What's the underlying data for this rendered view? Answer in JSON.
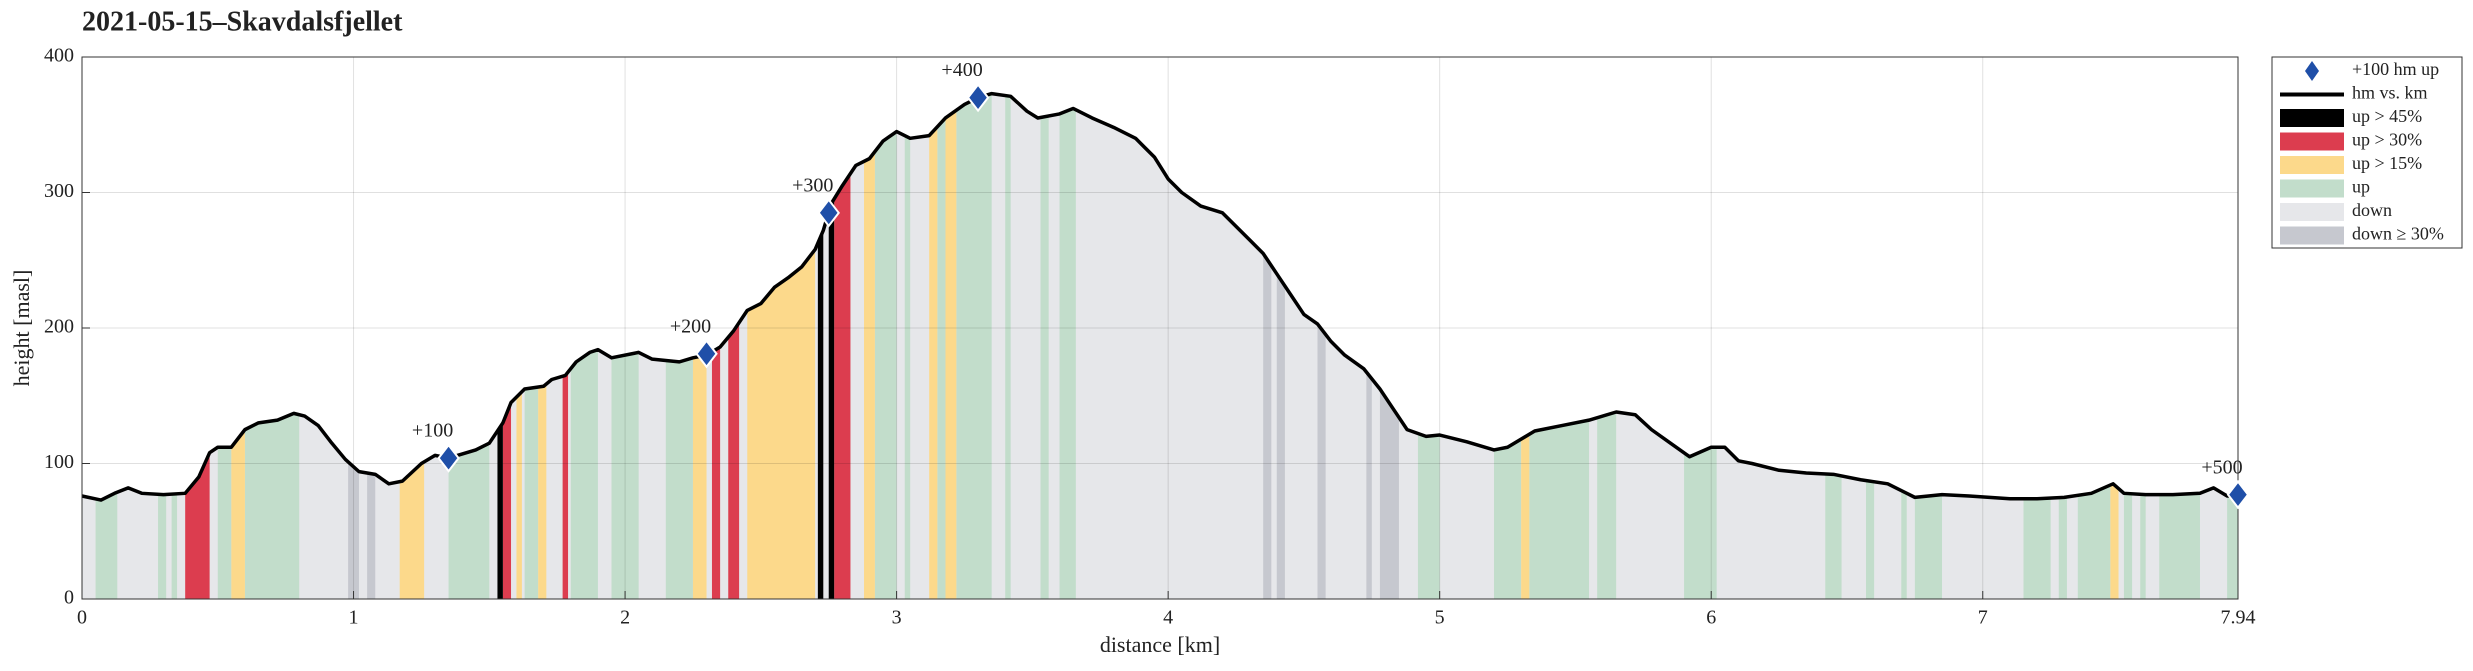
{
  "chart_data": {
    "type": "elevation-profile",
    "title": "2021-05-15–Skavdalsfjellet",
    "xlabel": "distance [km]",
    "ylabel": "height [masl]",
    "xlim": [
      0,
      7.94
    ],
    "ylim": [
      0,
      400
    ],
    "xticks": [
      0,
      1,
      2,
      3,
      4,
      5,
      6,
      7,
      7.94
    ],
    "yticks": [
      0,
      100,
      200,
      300,
      400
    ],
    "grid": true,
    "legend": "outside-right",
    "markers": {
      "name": "+100 hm up",
      "color": "#1f4fa8",
      "x": [
        1.35,
        2.3,
        2.75,
        3.3,
        7.94
      ],
      "y": [
        104,
        181,
        285,
        370,
        77
      ],
      "labels": [
        "+100",
        "+200",
        "+300",
        "+400",
        "+500"
      ]
    },
    "profile": {
      "name": "hm vs. km",
      "color": "#000000",
      "x": [
        0,
        0.07,
        0.12,
        0.17,
        0.22,
        0.3,
        0.38,
        0.43,
        0.47,
        0.5,
        0.55,
        0.6,
        0.65,
        0.72,
        0.78,
        0.82,
        0.87,
        0.92,
        0.97,
        1.02,
        1.08,
        1.13,
        1.18,
        1.25,
        1.3,
        1.35,
        1.45,
        1.5,
        1.55,
        1.58,
        1.63,
        1.7,
        1.73,
        1.78,
        1.82,
        1.87,
        1.9,
        1.95,
        2.05,
        2.1,
        2.2,
        2.25,
        2.3,
        2.35,
        2.4,
        2.45,
        2.5,
        2.55,
        2.6,
        2.65,
        2.7,
        2.73,
        2.76,
        2.8,
        2.85,
        2.9,
        2.95,
        3.0,
        3.05,
        3.12,
        3.18,
        3.25,
        3.3,
        3.35,
        3.42,
        3.48,
        3.52,
        3.6,
        3.65,
        3.72,
        3.8,
        3.88,
        3.95,
        4.0,
        4.05,
        4.12,
        4.2,
        4.3,
        4.35,
        4.4,
        4.45,
        4.5,
        4.55,
        4.6,
        4.65,
        4.72,
        4.78,
        4.83,
        4.88,
        4.95,
        5.0,
        5.1,
        5.2,
        5.25,
        5.35,
        5.45,
        5.55,
        5.65,
        5.72,
        5.78,
        5.85,
        5.92,
        6.0,
        6.05,
        6.1,
        6.15,
        6.25,
        6.35,
        6.45,
        6.55,
        6.65,
        6.75,
        6.85,
        6.95,
        7.1,
        7.2,
        7.3,
        7.4,
        7.48,
        7.52,
        7.6,
        7.7,
        7.8,
        7.85,
        7.9,
        7.94
      ],
      "y": [
        76,
        73,
        78,
        82,
        78,
        77,
        78,
        90,
        108,
        112,
        112,
        125,
        130,
        132,
        137,
        135,
        128,
        115,
        103,
        94,
        92,
        85,
        87,
        100,
        106,
        104,
        110,
        115,
        130,
        145,
        155,
        157,
        162,
        165,
        175,
        182,
        184,
        178,
        182,
        177,
        175,
        178,
        180,
        186,
        198,
        213,
        218,
        230,
        237,
        245,
        258,
        272,
        292,
        305,
        320,
        325,
        338,
        345,
        340,
        342,
        355,
        365,
        370,
        373,
        371,
        360,
        355,
        358,
        362,
        355,
        348,
        340,
        326,
        310,
        300,
        290,
        285,
        265,
        255,
        240,
        225,
        210,
        203,
        190,
        180,
        170,
        155,
        140,
        125,
        120,
        121,
        116,
        110,
        112,
        124,
        128,
        132,
        138,
        136,
        125,
        115,
        105,
        112,
        112,
        102,
        100,
        95,
        93,
        92,
        88,
        85,
        75,
        77,
        76,
        74,
        74,
        75,
        78,
        85,
        78,
        77,
        77,
        78,
        82,
        76,
        76
      ]
    },
    "bands": [
      {
        "name": "up > 45%",
        "color": "#000000",
        "ranges": [
          [
            1.53,
            1.55
          ],
          [
            2.71,
            2.73
          ],
          [
            2.75,
            2.77
          ]
        ]
      },
      {
        "name": "up > 30%",
        "color": "#dc3d4f",
        "ranges": [
          [
            0.38,
            0.47
          ],
          [
            1.55,
            1.58
          ],
          [
            1.77,
            1.79
          ],
          [
            2.32,
            2.35
          ],
          [
            2.38,
            2.42
          ],
          [
            2.77,
            2.83
          ]
        ]
      },
      {
        "name": "up > 15%",
        "color": "#fcd98b",
        "ranges": [
          [
            0.55,
            0.6
          ],
          [
            1.17,
            1.26
          ],
          [
            1.6,
            1.62
          ],
          [
            1.68,
            1.71
          ],
          [
            2.25,
            2.3
          ],
          [
            2.45,
            2.7
          ],
          [
            2.88,
            2.92
          ],
          [
            3.12,
            3.15
          ],
          [
            3.18,
            3.22
          ],
          [
            5.3,
            5.33
          ],
          [
            7.47,
            7.5
          ]
        ]
      },
      {
        "name": "up",
        "color": "#c2ddcb",
        "ranges": [
          [
            0.05,
            0.13
          ],
          [
            0.28,
            0.31
          ],
          [
            0.33,
            0.35
          ],
          [
            0.5,
            0.55
          ],
          [
            0.6,
            0.8
          ],
          [
            1.35,
            1.5
          ],
          [
            1.63,
            1.68
          ],
          [
            1.8,
            1.9
          ],
          [
            1.95,
            2.05
          ],
          [
            2.15,
            2.25
          ],
          [
            2.55,
            2.6
          ],
          [
            2.92,
            3.0
          ],
          [
            3.03,
            3.05
          ],
          [
            3.15,
            3.18
          ],
          [
            3.22,
            3.35
          ],
          [
            3.4,
            3.42
          ],
          [
            3.53,
            3.56
          ],
          [
            3.6,
            3.66
          ],
          [
            4.92,
            5.0
          ],
          [
            5.2,
            5.3
          ],
          [
            5.33,
            5.55
          ],
          [
            5.58,
            5.65
          ],
          [
            5.9,
            6.02
          ],
          [
            6.42,
            6.48
          ],
          [
            6.57,
            6.6
          ],
          [
            6.7,
            6.72
          ],
          [
            6.75,
            6.85
          ],
          [
            7.15,
            7.25
          ],
          [
            7.28,
            7.31
          ],
          [
            7.35,
            7.47
          ],
          [
            7.52,
            7.55
          ],
          [
            7.58,
            7.6
          ],
          [
            7.65,
            7.8
          ],
          [
            7.9,
            7.94
          ]
        ]
      },
      {
        "name": "down",
        "color": "#e6e7ea"
      },
      {
        "name": "down ≥ 30%",
        "color": "#c6c8cf",
        "ranges": [
          [
            0.98,
            1.02
          ],
          [
            1.05,
            1.08
          ],
          [
            4.35,
            4.38
          ],
          [
            4.4,
            4.43
          ],
          [
            4.55,
            4.58
          ],
          [
            4.73,
            4.75
          ],
          [
            4.78,
            4.85
          ]
        ]
      }
    ]
  }
}
